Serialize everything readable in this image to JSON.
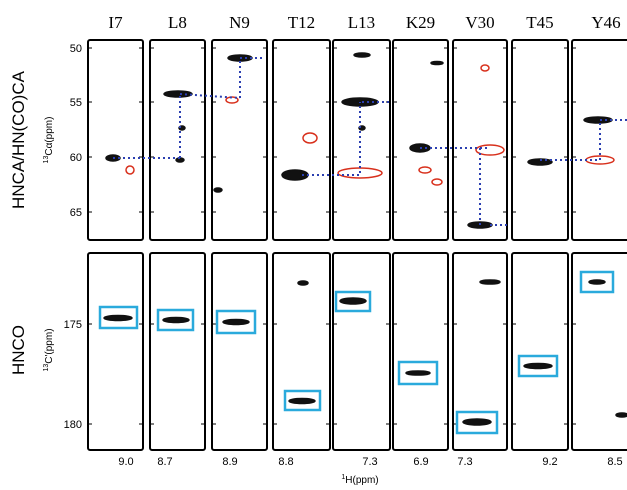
{
  "columns": [
    {
      "residue": "I7",
      "h_shift": "9.0"
    },
    {
      "residue": "L8",
      "h_shift": "8.7"
    },
    {
      "residue": "N9",
      "h_shift": "8.9"
    },
    {
      "residue": "T12",
      "h_shift": "8.8"
    },
    {
      "residue": "L13",
      "h_shift": "7.3"
    },
    {
      "residue": "K29",
      "h_shift": "6.9"
    },
    {
      "residue": "V30",
      "h_shift": "7.3"
    },
    {
      "residue": "T45",
      "h_shift": "9.2"
    },
    {
      "residue": "Y46",
      "h_shift": "8.5"
    }
  ],
  "rows": [
    {
      "label": "HNCA/HN(CO)CA",
      "axis_isotope": "13",
      "axis_label": "Cα(ppm)",
      "ticks": [
        "50",
        "55",
        "60",
        "65"
      ]
    },
    {
      "label": "HNCO",
      "axis_isotope": "13",
      "axis_label": "C'(ppm)",
      "ticks": [
        "175",
        "180"
      ]
    }
  ],
  "x_axis_isotope": "1",
  "x_axis_label": "H(ppm)"
}
